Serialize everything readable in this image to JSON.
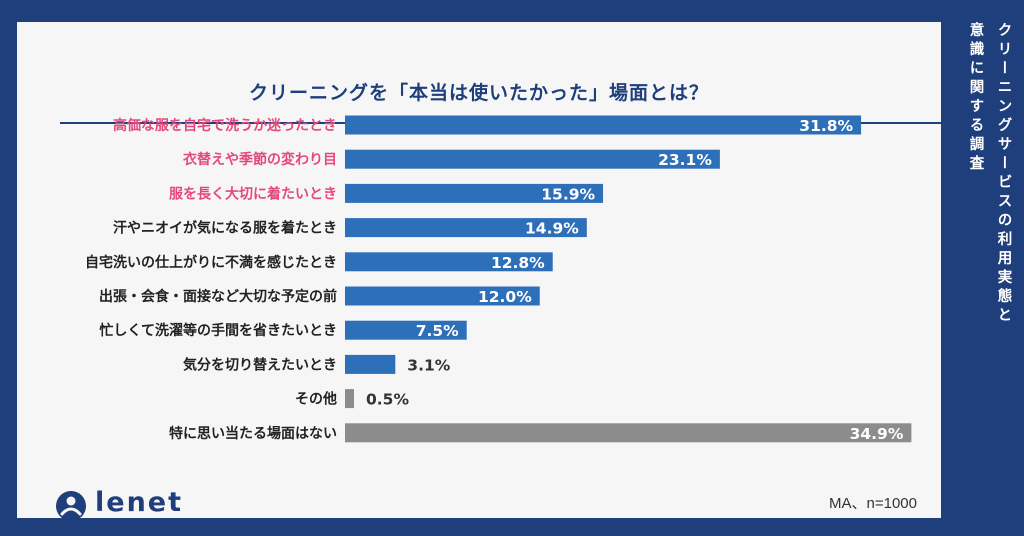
{
  "side_title": {
    "line1": "クリーニングサービスの利用実態と",
    "line2": "意識に関する調査"
  },
  "colors": {
    "background": "#1f3e7c",
    "bar_main": "#2e6fba",
    "bar_gray": "#8c8c8c",
    "highlight": "#e5487a",
    "label": "#222222",
    "value_outside": "#333333"
  },
  "chart_data": {
    "type": "bar",
    "orientation": "horizontal",
    "title": "クリーニングを「本当は使いたかった」場面とは？",
    "unit": "%",
    "categories": [
      "高価な服を自宅で洗うか迷ったとき",
      "衣替えや季節の変わり目",
      "服を長く大切に着たいとき",
      "汗やニオイが気になる服を着たとき",
      "自宅洗いの仕上がりに不満を感じたとき",
      "出張・会食・面接など大切な予定の前",
      "忙しくて洗濯等の手間を省きたいとき",
      "気分を切り替えたいとき",
      "その他",
      "特に思い当たる場面はない"
    ],
    "values": [
      31.8,
      23.1,
      15.9,
      14.9,
      12.8,
      12.0,
      7.5,
      3.1,
      0.5,
      34.9
    ],
    "value_labels": [
      "31.8%",
      "23.1%",
      "15.9%",
      "14.9%",
      "12.8%",
      "12.0%",
      "7.5%",
      "3.1%",
      "0.5%",
      "34.9%"
    ],
    "highlighted": [
      true,
      true,
      true,
      false,
      false,
      false,
      false,
      false,
      false,
      false
    ],
    "bar_color": [
      "main",
      "main",
      "main",
      "main",
      "main",
      "main",
      "main",
      "main",
      "gray",
      "gray"
    ],
    "xlim": [
      0,
      35
    ]
  },
  "logo": {
    "text": "lenet"
  },
  "footnote": "MA、n=1000"
}
